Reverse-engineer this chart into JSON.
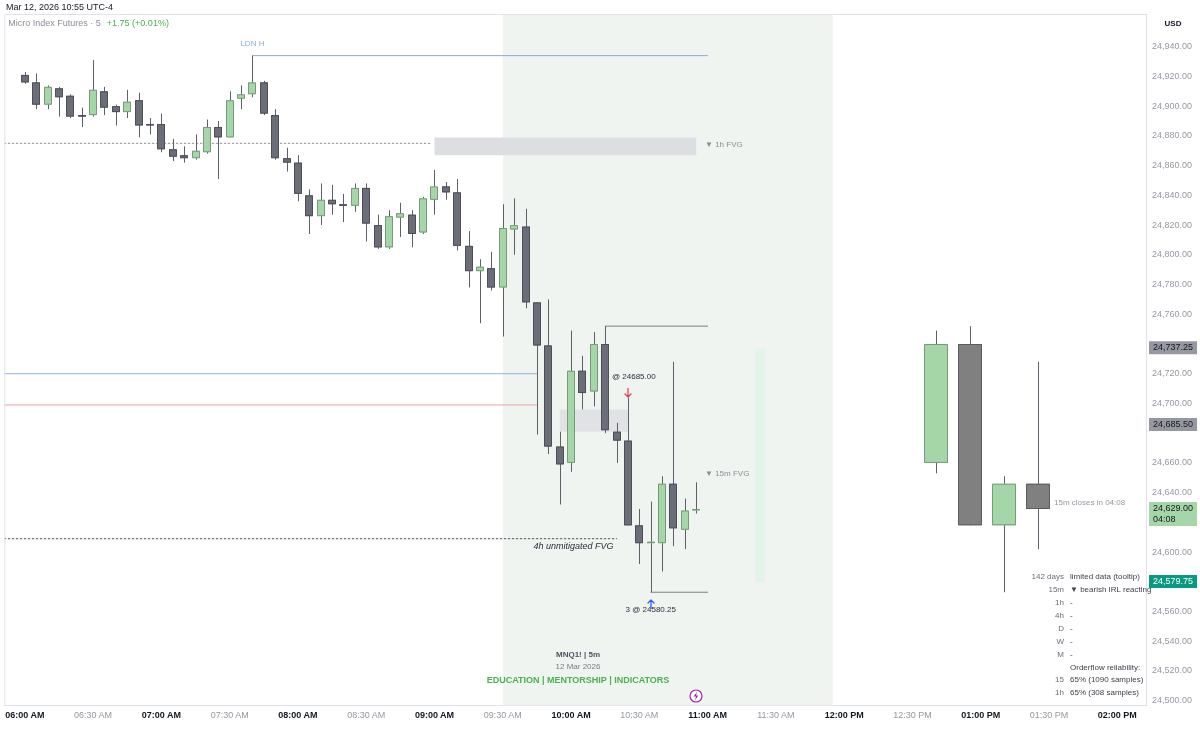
{
  "chart_data": {
    "type": "candlestick",
    "title": "Micro Index Futures · 5",
    "subtitle": "+1.75 (+0.01%)",
    "ylabel": "USD",
    "xlim": [
      5.85,
      14.21
    ],
    "ylim": [
      24497,
      24962
    ],
    "xticks": [
      {
        "value": 6,
        "label": "06:00 AM"
      },
      {
        "value": 6.5,
        "label": "06:30 AM"
      },
      {
        "value": 7,
        "label": "07:00 AM"
      },
      {
        "value": 7.5,
        "label": "07:30 AM"
      },
      {
        "value": 8,
        "label": "08:00 AM"
      },
      {
        "value": 8.5,
        "label": "08:30 AM"
      },
      {
        "value": 9,
        "label": "09:00 AM"
      },
      {
        "value": 9.5,
        "label": "09:30 AM"
      },
      {
        "value": 10,
        "label": "10:00 AM"
      },
      {
        "value": 10.5,
        "label": "10:30 AM"
      },
      {
        "value": 11,
        "label": "11:00 AM"
      },
      {
        "value": 11.5,
        "label": "11:30 AM"
      },
      {
        "value": 12,
        "label": "12:00 PM"
      },
      {
        "value": 12.5,
        "label": "12:30 PM"
      },
      {
        "value": 13,
        "label": "01:00 PM"
      },
      {
        "value": 13.5,
        "label": "01:30 PM"
      },
      {
        "value": 14,
        "label": "02:00 PM"
      }
    ],
    "yticks": [
      {
        "value": 24500,
        "label": "24,500.00"
      },
      {
        "value": 24520,
        "label": "24,520.00"
      },
      {
        "value": 24540,
        "label": "24,540.00"
      },
      {
        "value": 24560,
        "label": "24,560.00"
      },
      {
        "value": 24600,
        "label": "24,600.00"
      },
      {
        "value": 24640,
        "label": "24,640.00"
      },
      {
        "value": 24660,
        "label": "24,660.00"
      },
      {
        "value": 24700,
        "label": "24,700.00"
      },
      {
        "value": 24720,
        "label": "24,720.00"
      },
      {
        "value": 24760,
        "label": "24,760.00"
      },
      {
        "value": 24780,
        "label": "24,780.00"
      },
      {
        "value": 24800,
        "label": "24,800.00"
      },
      {
        "value": 24820,
        "label": "24,820.00"
      },
      {
        "value": 24840,
        "label": "24,840.00"
      },
      {
        "value": 24860,
        "label": "24,860.00"
      },
      {
        "value": 24880,
        "label": "24,880.00"
      },
      {
        "value": 24900,
        "label": "24,900.00"
      },
      {
        "value": 24920,
        "label": "24,920.00"
      },
      {
        "value": 24940,
        "label": "24,940.00"
      }
    ],
    "bands": [
      {
        "axis": "x",
        "from": 9.5,
        "to": 11.9167,
        "color": "#f0f4f1"
      }
    ],
    "series": [
      {
        "x": [
          6,
          6.0833,
          6.1667,
          6.25,
          6.3333,
          6.4167,
          6.5,
          6.5833,
          6.6667,
          6.75,
          6.8333,
          6.9167,
          7,
          7.0833,
          7.1667,
          7.25,
          7.3333,
          7.4167,
          7.5,
          7.5833,
          7.6667,
          7.75,
          7.8333,
          7.9167,
          8,
          8.0833,
          8.1667,
          8.25,
          8.3333,
          8.4167,
          8.5,
          8.5833,
          8.6667,
          8.75,
          8.8333,
          8.9167,
          9,
          9.0833,
          9.1667,
          9.25,
          9.3333,
          9.4167,
          9.5,
          9.5833,
          9.6667,
          9.75,
          9.8333,
          9.9167,
          10,
          10.0833,
          10.1667,
          10.25,
          10.3333,
          10.4167,
          10.5,
          10.5833,
          10.6667,
          10.75,
          10.8333,
          10.9167
        ],
        "ohlc": [
          [
            24921,
            24923,
            24915,
            24916
          ],
          [
            24916,
            24922,
            24898,
            24901
          ],
          [
            24901,
            24914,
            24898,
            24913
          ],
          [
            24912,
            24913,
            24893,
            24906
          ],
          [
            24907,
            24908,
            24892,
            24893
          ],
          [
            24894,
            24899,
            24886,
            24894
          ],
          [
            24894,
            24931,
            24893,
            24911
          ],
          [
            24910,
            24913,
            24894,
            24899
          ],
          [
            24900,
            24901,
            24887,
            24896
          ],
          [
            24896,
            24911,
            24892,
            24903
          ],
          [
            24904,
            24909,
            24879,
            24887
          ],
          [
            24888,
            24892,
            24881,
            24888
          ],
          [
            24888,
            24895,
            24869,
            24871
          ],
          [
            24871,
            24878,
            24863,
            24866
          ],
          [
            24867,
            24873,
            24862,
            24865
          ],
          [
            24865,
            24881,
            24864,
            24870
          ],
          [
            24869,
            24891,
            24868,
            24886
          ],
          [
            24886,
            24890,
            24851,
            24879
          ],
          [
            24879,
            24910,
            24879,
            24904
          ],
          [
            24905,
            24914,
            24898,
            24908
          ],
          [
            24908,
            24934,
            24906,
            24916
          ],
          [
            24916,
            24917,
            24894,
            24895
          ],
          [
            24894,
            24898,
            24864,
            24865
          ],
          [
            24865,
            24872,
            24856,
            24862
          ],
          [
            24862,
            24867,
            24836,
            24841
          ],
          [
            24840,
            24844,
            24814,
            24826
          ],
          [
            24826,
            24848,
            24820,
            24837
          ],
          [
            24837,
            24847,
            24827,
            24834
          ],
          [
            24834,
            24841,
            24822,
            24834
          ],
          [
            24833,
            24848,
            24829,
            24845
          ],
          [
            24845,
            24848,
            24809,
            24821
          ],
          [
            24820,
            24827,
            24804,
            24805
          ],
          [
            24805,
            24830,
            24804,
            24826
          ],
          [
            24825,
            24835,
            24812,
            24828
          ],
          [
            24827,
            24830,
            24805,
            24814
          ],
          [
            24815,
            24839,
            24814,
            24838
          ],
          [
            24837,
            24857,
            24827,
            24846
          ],
          [
            24846,
            24849,
            24837,
            24842
          ],
          [
            24842,
            24851,
            24803,
            24806
          ],
          [
            24806,
            24816,
            24778,
            24789
          ],
          [
            24789,
            24797,
            24754,
            24792
          ],
          [
            24791,
            24802,
            24776,
            24778
          ],
          [
            24778,
            24834,
            24745,
            24818
          ],
          [
            24817,
            24838,
            24800,
            24820
          ],
          [
            24819,
            24831,
            24764,
            24768
          ],
          [
            24768,
            24768,
            24679,
            24739
          ],
          [
            24739,
            24770,
            24666,
            24671
          ],
          [
            24671,
            24681,
            24632,
            24659
          ],
          [
            24660,
            24749,
            24654,
            24722
          ],
          [
            24722,
            24732,
            24696,
            24707
          ],
          [
            24708,
            24748,
            24698,
            24740
          ],
          [
            24740,
            24752,
            24680,
            24682
          ],
          [
            24681,
            24687,
            24660,
            24675
          ],
          [
            24675,
            24704,
            24618,
            24618
          ],
          [
            24618,
            24629,
            24592,
            24606
          ],
          [
            24606,
            24634,
            24573,
            24607
          ],
          [
            24606,
            24651,
            24587,
            24646
          ],
          [
            24646,
            24728,
            24604,
            24616
          ],
          [
            24615,
            24636,
            24602,
            24628
          ],
          [
            24628,
            24647,
            24626,
            24629
          ]
        ],
        "colors": [
          "#6b6e78",
          "#6b6e78",
          "#a5d6a7",
          "#6b6e78",
          "#6b6e78",
          "#6b6e78",
          "#a5d6a7",
          "#6b6e78",
          "#6b6e78",
          "#a5d6a7",
          "#6b6e78",
          "#6b6e78",
          "#6b6e78",
          "#6b6e78",
          "#6b6e78",
          "#a5d6a7",
          "#a5d6a7",
          "#6b6e78",
          "#a5d6a7",
          "#a5d6a7",
          "#a5d6a7",
          "#6b6e78",
          "#6b6e78",
          "#6b6e78",
          "#6b6e78",
          "#6b6e78",
          "#a5d6a7",
          "#6b6e78",
          "#6b6e78",
          "#a5d6a7",
          "#6b6e78",
          "#6b6e78",
          "#a5d6a7",
          "#a5d6a7",
          "#6b6e78",
          "#a5d6a7",
          "#a5d6a7",
          "#6b6e78",
          "#6b6e78",
          "#6b6e78",
          "#a5d6a7",
          "#6b6e78",
          "#a5d6a7",
          "#a5d6a7",
          "#6b6e78",
          "#6b6e78",
          "#6b6e78",
          "#6b6e78",
          "#a5d6a7",
          "#6b6e78",
          "#a5d6a7",
          "#6b6e78",
          "#6b6e78",
          "#6b6e78",
          "#6b6e78",
          "#a5d6a7",
          "#a5d6a7",
          "#6b6e78",
          "#a5d6a7",
          "#a5d6a7"
        ]
      },
      {
        "x": [
          12.67,
          12.92,
          13.17,
          13.42
        ],
        "ohlc": [
          [
            24660,
            24749,
            24653,
            24740
          ],
          [
            24740,
            24752,
            24618,
            24618
          ],
          [
            24618,
            24651,
            24573,
            24646
          ],
          [
            24646,
            24728,
            24602,
            24629
          ]
        ],
        "colors": [
          "#a5d6a7",
          "#808080",
          "#a5d6a7",
          "#808080"
        ]
      },
      {
        "type": "line",
        "name": "LDN H",
        "color": "#8fabd6",
        "x": [
          7.6667,
          11.0
        ],
        "values": [
          24934,
          24934
        ]
      },
      {
        "type": "line",
        "color": "#7a7d85",
        "x": [
          10.25,
          11.0
        ],
        "values": [
          24752,
          24752
        ]
      },
      {
        "type": "line",
        "color": "#7a7d85",
        "x": [
          10.5833,
          11.0
        ],
        "values": [
          24573,
          24573
        ]
      },
      {
        "type": "line",
        "color": "#8fb4dc",
        "x": [
          5.85,
          9.75
        ],
        "values": [
          24720,
          24720
        ]
      },
      {
        "type": "line",
        "color": "#e8a3a3",
        "x": [
          5.85,
          9.75
        ],
        "values": [
          24699,
          24699
        ]
      },
      {
        "type": "line",
        "name": "4h unmitigated FVG",
        "color": "#555555",
        "line_style": "dotted",
        "x": [
          5.85,
          10.3333
        ],
        "values": [
          24609,
          24609
        ]
      },
      {
        "type": "line",
        "color": "#8e919a",
        "line_style": "dotted",
        "x": [
          5.85,
          8.98
        ],
        "values": [
          24875,
          24875
        ]
      },
      {
        "type": "line",
        "color": "#dcdee1",
        "x": [
          9.0,
          10.9167
        ],
        "values": [
          null,
          null
        ],
        "lower": [
          24867,
          24867
        ],
        "upper": [
          24879,
          24879
        ]
      },
      {
        "type": "line",
        "color": "#e1e2e5",
        "x": [
          9.9167,
          10.4167
        ],
        "values": [
          null,
          null
        ],
        "lower": [
          24681,
          24681
        ],
        "upper": [
          24696,
          24696
        ]
      },
      {
        "type": "line",
        "color": "#e2f3e8",
        "x": [
          11.35,
          11.42
        ],
        "values": [
          null,
          null
        ],
        "lower": [
          24580,
          24580
        ],
        "upper": [
          24737,
          24737
        ]
      }
    ],
    "annotations": [
      "Mar 12, 2026 10:55 UTC-4",
      "MNQ1! | 5m",
      "12 Mar 2026",
      "EDUCATION | MENTORSHIP | INDICATORS",
      "15m closes in 04:08",
      "142 days",
      "limited data (tooltip)",
      "15m",
      "▼ bearish IRL reacting",
      "1h",
      "-",
      "4h",
      "-",
      "D",
      "-",
      "W",
      "-",
      "M",
      "-",
      "Orderflow reliability:",
      "15",
      "65% (1090 samples)",
      "1h",
      "65% (308 samples)",
      "▼ 1h FVG",
      "▼ 15m FVG",
      "24,737.25",
      "24,685.50",
      "24,629.00\n04:08",
      "24,579.75",
      {
        "text": "@ 24685.00",
        "x": 10.4167,
        "y": 24704
      },
      {
        "text": "3 @ 24580.25",
        "x": 10.5833,
        "y": 24573
      }
    ]
  }
}
